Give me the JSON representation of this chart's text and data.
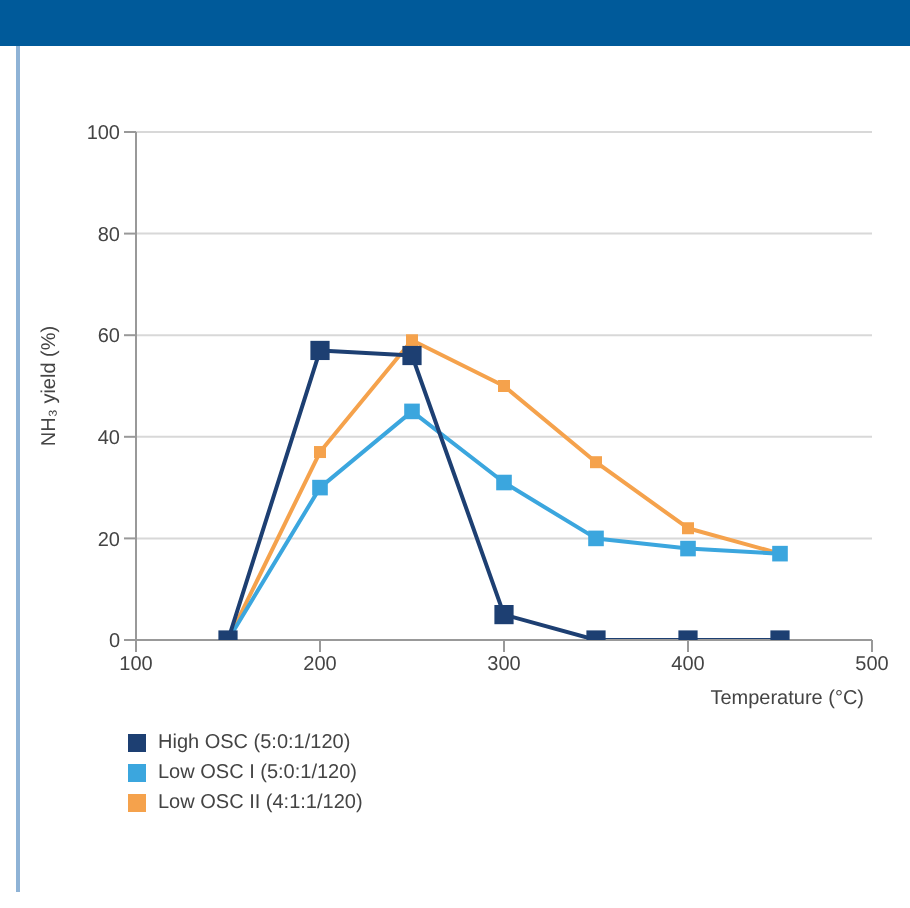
{
  "chart_data": {
    "type": "line",
    "xlabel": "Temperature (°C)",
    "ylabel": "NH₃ yield (%)",
    "x": [
      150,
      200,
      250,
      300,
      350,
      400,
      450
    ],
    "series": [
      {
        "name": "High OSC (5:0:1/120)",
        "color": "#1d3f72",
        "values": [
          0,
          57,
          56,
          5,
          0,
          0,
          0
        ]
      },
      {
        "name": "Low OSC I (5:0:1/120)",
        "color": "#3ba6de",
        "values": [
          0,
          30,
          45,
          31,
          20,
          18,
          17
        ]
      },
      {
        "name": "Low OSC II (4:1:1/120)",
        "color": "#f5a24c",
        "values": [
          0,
          37,
          59,
          50,
          35,
          22,
          17
        ]
      }
    ],
    "xlim": [
      100,
      500
    ],
    "xticks": [
      100,
      200,
      300,
      400,
      500
    ],
    "ylim": [
      0,
      100
    ],
    "yticks": [
      0,
      20,
      40,
      60,
      80,
      100
    ],
    "grid": "y",
    "legend": "bottom left",
    "marker": "square",
    "line_style": "solid"
  }
}
